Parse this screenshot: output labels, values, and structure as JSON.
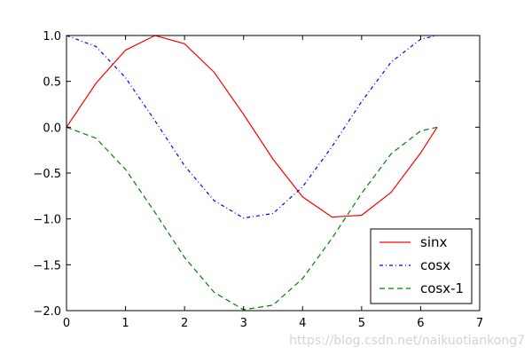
{
  "chart_data": {
    "type": "line",
    "title": "",
    "xlabel": "",
    "ylabel": "",
    "xlim": [
      0,
      7
    ],
    "ylim": [
      -2.0,
      1.0
    ],
    "xticks": [
      0,
      1,
      2,
      3,
      4,
      5,
      6,
      7
    ],
    "xtick_labels": [
      "0",
      "1",
      "2",
      "3",
      "4",
      "5",
      "6",
      "7"
    ],
    "yticks": [
      1.0,
      0.5,
      0.0,
      -0.5,
      -1.0,
      -1.5,
      -2.0
    ],
    "ytick_labels": [
      "1.0",
      "0.5",
      "0.0",
      "−0.5",
      "−1.0",
      "−1.5",
      "−2.0"
    ],
    "grid": false,
    "legend_position": "lower-right",
    "series": [
      {
        "name": "sinx",
        "color": "#ff0000",
        "style": "solid",
        "x": [
          0,
          0.5,
          1.0,
          1.5,
          2.0,
          2.5,
          3.0,
          3.5,
          4.0,
          4.5,
          5.0,
          5.5,
          6.0,
          6.28
        ],
        "y": [
          0.0,
          0.48,
          0.84,
          1.0,
          0.91,
          0.6,
          0.14,
          -0.35,
          -0.76,
          -0.98,
          -0.96,
          -0.71,
          -0.28,
          0.0
        ]
      },
      {
        "name": "cosx",
        "color": "#0000ff",
        "style": "dashdot",
        "x": [
          0,
          0.5,
          1.0,
          1.5,
          2.0,
          2.5,
          3.0,
          3.5,
          4.0,
          4.5,
          5.0,
          5.5,
          6.0,
          6.28
        ],
        "y": [
          1.0,
          0.88,
          0.54,
          0.07,
          -0.42,
          -0.8,
          -0.99,
          -0.94,
          -0.65,
          -0.21,
          0.28,
          0.71,
          0.96,
          1.0
        ]
      },
      {
        "name": "cosx-1",
        "color": "#008000",
        "style": "dashed",
        "x": [
          0,
          0.5,
          1.0,
          1.5,
          2.0,
          2.5,
          3.0,
          3.5,
          4.0,
          4.5,
          5.0,
          5.5,
          6.0,
          6.28
        ],
        "y": [
          0.0,
          -0.12,
          -0.46,
          -0.93,
          -1.42,
          -1.8,
          -1.99,
          -1.94,
          -1.65,
          -1.21,
          -0.72,
          -0.29,
          -0.04,
          0.0
        ]
      }
    ]
  },
  "watermark": "https://blog.csdn.net/naikuotiankong7"
}
